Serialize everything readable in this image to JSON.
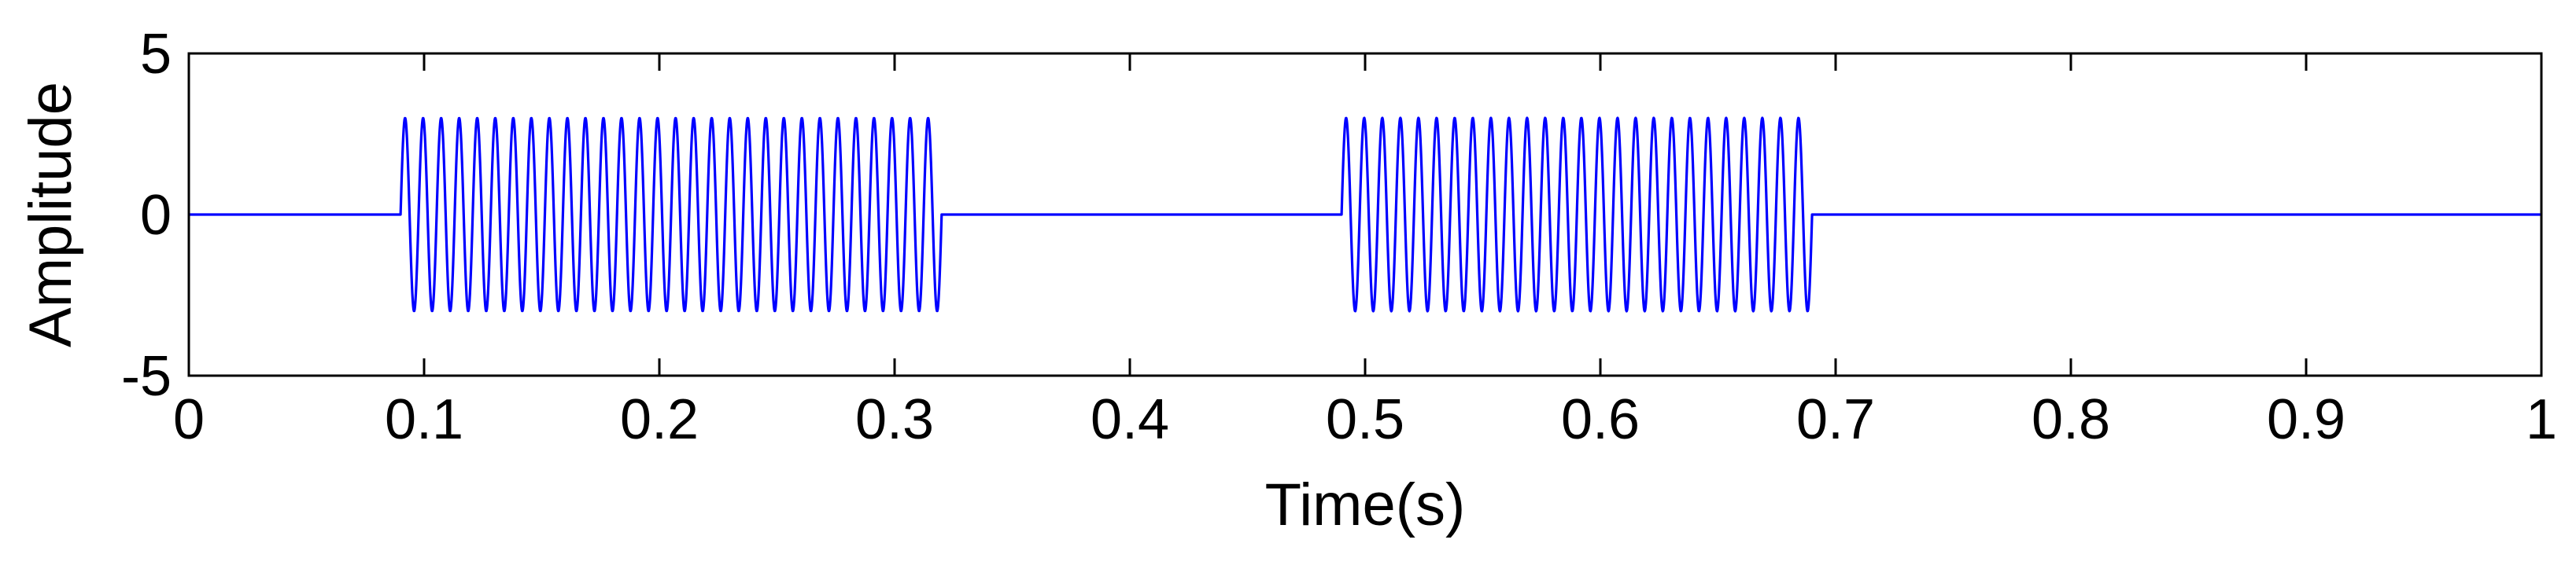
{
  "chart_data": {
    "type": "line",
    "xlabel": "Time(s)",
    "ylabel": "Amplitude",
    "xlim": [
      0,
      1
    ],
    "ylim": [
      -5,
      5
    ],
    "x_ticks": [
      0,
      0.1,
      0.2,
      0.3,
      0.4,
      0.5,
      0.6,
      0.7,
      0.8,
      0.9,
      1
    ],
    "x_tick_labels": [
      "0",
      "0.1",
      "0.2",
      "0.3",
      "0.4",
      "0.5",
      "0.6",
      "0.7",
      "0.8",
      "0.9",
      "1"
    ],
    "y_ticks": [
      -5,
      0,
      5
    ],
    "y_tick_labels": [
      "-5",
      "0",
      "5"
    ],
    "grid": false,
    "series": [
      {
        "color": "#0000ff",
        "baseline": 0,
        "bursts": [
          {
            "start": 0.09,
            "end": 0.32,
            "amplitude": 3,
            "cycles": 30
          },
          {
            "start": 0.49,
            "end": 0.69,
            "amplitude": 3,
            "cycles": 26
          }
        ]
      }
    ]
  }
}
